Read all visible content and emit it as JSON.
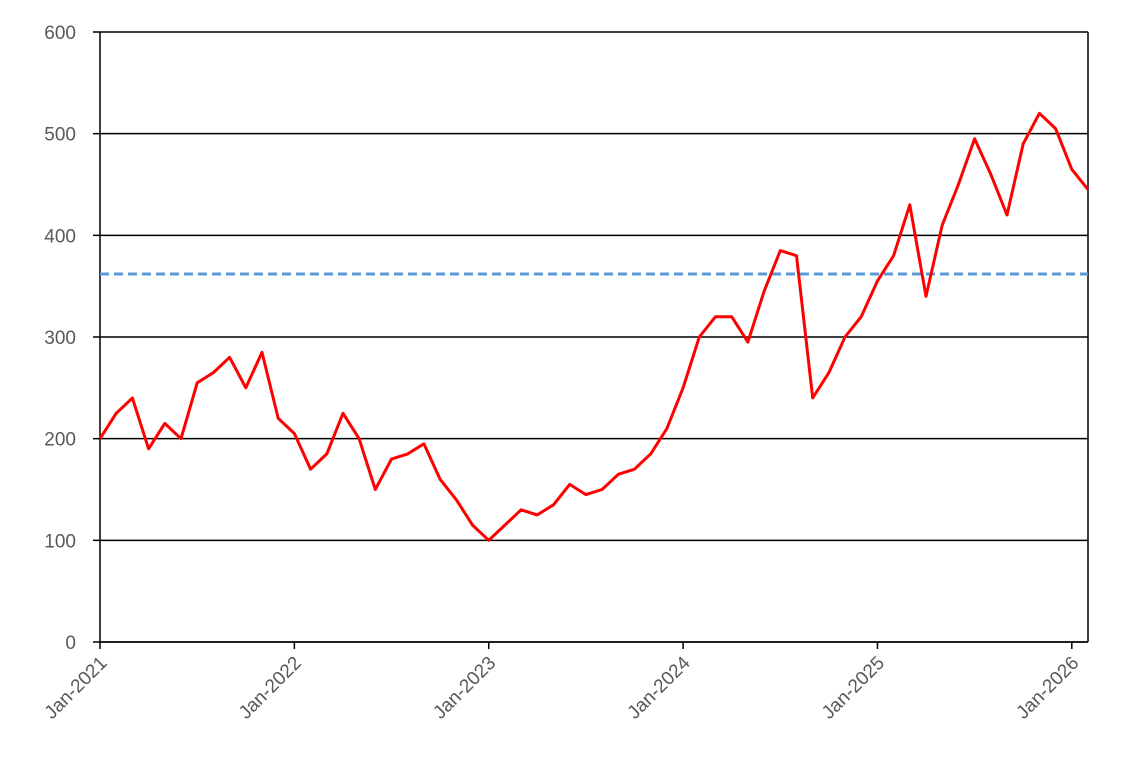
{
  "chart_data": {
    "type": "line",
    "x": [
      "2021-01",
      "2021-02",
      "2021-03",
      "2021-04",
      "2021-05",
      "2021-06",
      "2021-07",
      "2021-08",
      "2021-09",
      "2021-10",
      "2021-11",
      "2021-12",
      "2022-01",
      "2022-02",
      "2022-03",
      "2022-04",
      "2022-05",
      "2022-06",
      "2022-07",
      "2022-08",
      "2022-09",
      "2022-10",
      "2022-11",
      "2022-12",
      "2023-01",
      "2023-02",
      "2023-03",
      "2023-04",
      "2023-05",
      "2023-06",
      "2023-07",
      "2023-08",
      "2023-09",
      "2023-10",
      "2023-11",
      "2023-12",
      "2024-01",
      "2024-02",
      "2024-03",
      "2024-04",
      "2024-05",
      "2024-06",
      "2024-07",
      "2024-08",
      "2024-09",
      "2024-10",
      "2024-11",
      "2024-12",
      "2025-01",
      "2025-02",
      "2025-03",
      "2025-04",
      "2025-05",
      "2025-06",
      "2025-07",
      "2025-08",
      "2025-09",
      "2025-10",
      "2025-11",
      "2025-12",
      "2026-01",
      "2026-02"
    ],
    "values": [
      200,
      225,
      240,
      190,
      215,
      200,
      255,
      265,
      280,
      250,
      285,
      220,
      205,
      170,
      185,
      225,
      200,
      150,
      180,
      185,
      195,
      160,
      140,
      115,
      100,
      115,
      130,
      125,
      135,
      155,
      145,
      150,
      165,
      170,
      185,
      210,
      250,
      300,
      320,
      320,
      295,
      345,
      385,
      380,
      240,
      265,
      300,
      320,
      355,
      380,
      430,
      340,
      410,
      450,
      495,
      460,
      420,
      490,
      520,
      505,
      465,
      445
    ],
    "color": "#ff0000",
    "reference_line": {
      "value": 362,
      "color": "#5b9bd5",
      "style": "dashed"
    },
    "xlim": [
      "2021-01",
      "2026-02"
    ],
    "xticks": [
      {
        "value": "2021-01",
        "label": "Jan-2021"
      },
      {
        "value": "2022-01",
        "label": "Jan-2022"
      },
      {
        "value": "2023-01",
        "label": "Jan-2023"
      },
      {
        "value": "2024-01",
        "label": "Jan-2024"
      },
      {
        "value": "2025-01",
        "label": "Jan-2025"
      },
      {
        "value": "2026-01",
        "label": "Jan-2026"
      }
    ],
    "ylim": [
      0,
      600
    ],
    "yticks": [
      0,
      100,
      200,
      300,
      400,
      500,
      600
    ],
    "grid": true
  }
}
